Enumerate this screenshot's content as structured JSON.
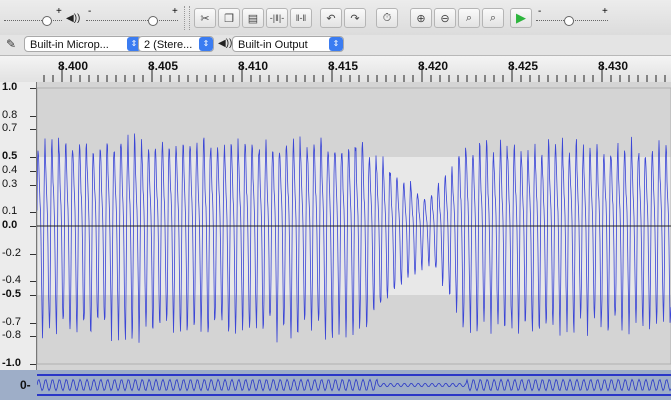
{
  "toolbar": {
    "play_icon": "play-icon",
    "speaker_glyph": "◀))",
    "plus": "+",
    "minus": "-"
  },
  "device_toolbar": {
    "input_device": "Built-in Microp...",
    "channels": "2 (Stere...",
    "output_device": "Built-in Output"
  },
  "timeline": {
    "ticks": [
      "8.400",
      "8.405",
      "8.410",
      "8.415",
      "8.420",
      "8.425",
      "8.430"
    ]
  },
  "track": {
    "amplitude_labels": [
      "1.0",
      "0.8",
      "0.7",
      "0.5",
      "0.4",
      "0.3",
      "0.1",
      "0.0",
      "-0.2",
      "-0.4",
      "-0.5",
      "-0.7",
      "-0.8",
      "-1.0"
    ],
    "bottom_label": "0-"
  },
  "colors": {
    "waveform": "#3b46d6",
    "selection_band": "#e8e8e8",
    "track_bg": "#d4d4d4",
    "play_green": "#2db53d",
    "dropdown_blue": "#3b7cf1"
  }
}
